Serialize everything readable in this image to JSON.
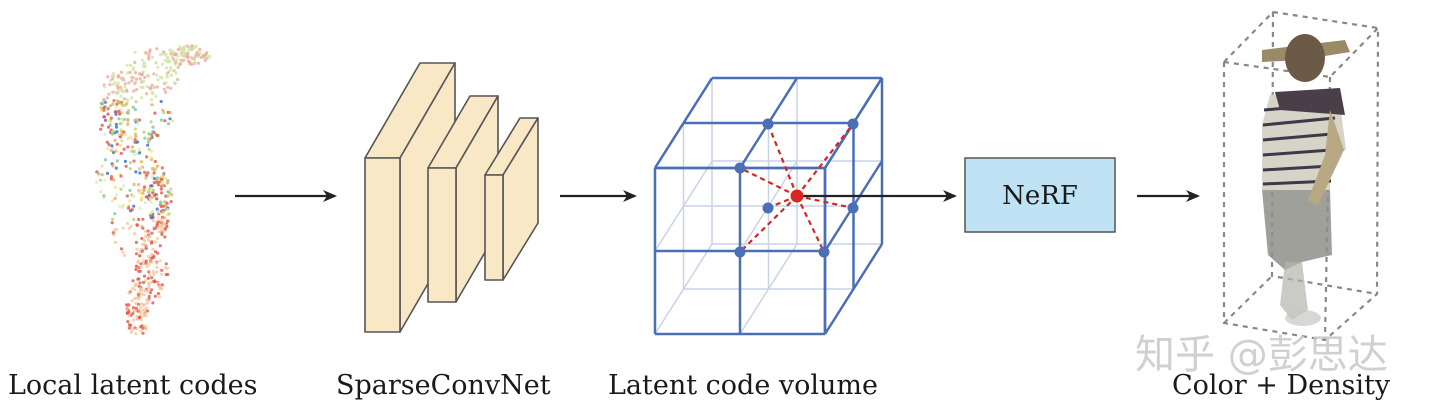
{
  "labels": {
    "local_latent_codes": "Local latent codes",
    "sparseconvnet": "SparseConvNet",
    "latent_code_volume": "Latent code volume",
    "color_density": "Color + Density"
  },
  "nerf_box": {
    "label": "NeRF",
    "fill": "#bfe3f5",
    "border": "#555555"
  },
  "watermark": "知乎 @彭思达",
  "colors": {
    "grid_blue": "#4a6fb5",
    "grid_faint": "#c9d3e8",
    "sample_red": "#d8251f",
    "conv_fill": "#f8e8c6",
    "conv_edge": "#555555",
    "arrow": "#222222"
  }
}
